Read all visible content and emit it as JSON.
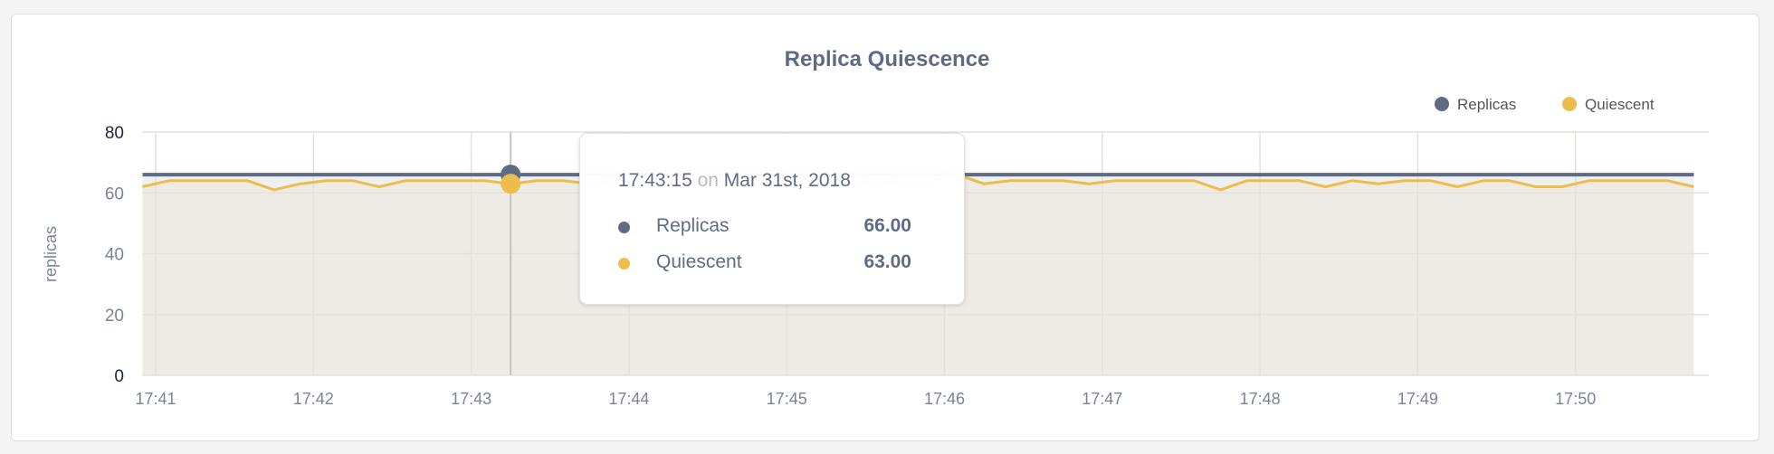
{
  "chart_data": {
    "type": "line",
    "title": "Replica Quiescence",
    "ylabel": "replicas",
    "xlabel": "",
    "ylim": [
      0,
      80
    ],
    "yticks": [
      "0",
      "20",
      "40",
      "60",
      "80"
    ],
    "xticks": [
      "17:41",
      "17:42",
      "17:43",
      "17:44",
      "17:45",
      "17:46",
      "17:47",
      "17:48",
      "17:49",
      "17:50"
    ],
    "grid": true,
    "legend_position": "top-right",
    "x": [
      "17:40:55",
      "17:41:05",
      "17:41:15",
      "17:41:25",
      "17:41:35",
      "17:41:45",
      "17:41:55",
      "17:42:05",
      "17:42:15",
      "17:42:25",
      "17:42:35",
      "17:42:45",
      "17:42:55",
      "17:43:05",
      "17:43:15",
      "17:43:25",
      "17:43:35",
      "17:43:45",
      "17:43:55",
      "17:44:05",
      "17:44:15",
      "17:44:25",
      "17:44:35",
      "17:44:45",
      "17:44:55",
      "17:45:05",
      "17:45:15",
      "17:45:25",
      "17:45:35",
      "17:45:45",
      "17:45:55",
      "17:46:05",
      "17:46:15",
      "17:46:25",
      "17:46:35",
      "17:46:45",
      "17:46:55",
      "17:47:05",
      "17:47:15",
      "17:47:25",
      "17:47:35",
      "17:47:45",
      "17:47:55",
      "17:48:05",
      "17:48:15",
      "17:48:25",
      "17:48:35",
      "17:48:45",
      "17:48:55",
      "17:49:05",
      "17:49:15",
      "17:49:25",
      "17:49:35",
      "17:49:45",
      "17:49:55",
      "17:50:05",
      "17:50:15",
      "17:50:25",
      "17:50:35",
      "17:50:45"
    ],
    "series": [
      {
        "name": "Replicas",
        "color": "#5f6b85",
        "fill": "#eef0f2",
        "values": [
          66,
          66,
          66,
          66,
          66,
          66,
          66,
          66,
          66,
          66,
          66,
          66,
          66,
          66,
          66,
          66,
          66,
          66,
          66,
          66,
          66,
          66,
          66,
          66,
          66,
          66,
          66,
          66,
          66,
          66,
          66,
          66,
          66,
          66,
          66,
          66,
          66,
          66,
          66,
          66,
          66,
          66,
          66,
          66,
          66,
          66,
          66,
          66,
          66,
          66,
          66,
          66,
          66,
          66,
          66,
          66,
          66,
          66,
          66,
          66
        ]
      },
      {
        "name": "Quiescent",
        "color": "#ecbd4b",
        "fill": "#eeebe4",
        "values": [
          62,
          64,
          64,
          64,
          64,
          61,
          63,
          64,
          64,
          62,
          64,
          64,
          64,
          64,
          63,
          64,
          64,
          63,
          64,
          64,
          64,
          64,
          64,
          62,
          64,
          64,
          64,
          64,
          63,
          64,
          64,
          66,
          63,
          64,
          64,
          64,
          63,
          64,
          64,
          64,
          64,
          61,
          64,
          64,
          64,
          62,
          64,
          63,
          64,
          64,
          62,
          64,
          64,
          62,
          62,
          64,
          64,
          64,
          64,
          62
        ]
      }
    ],
    "hover": {
      "time": "17:43:15",
      "on_word": "on",
      "date": "Mar 31st, 2018",
      "rows": [
        {
          "name": "Replicas",
          "value": "66.00",
          "color": "#5f6b85"
        },
        {
          "name": "Quiescent",
          "value": "63.00",
          "color": "#ecbd4b"
        }
      ]
    }
  }
}
